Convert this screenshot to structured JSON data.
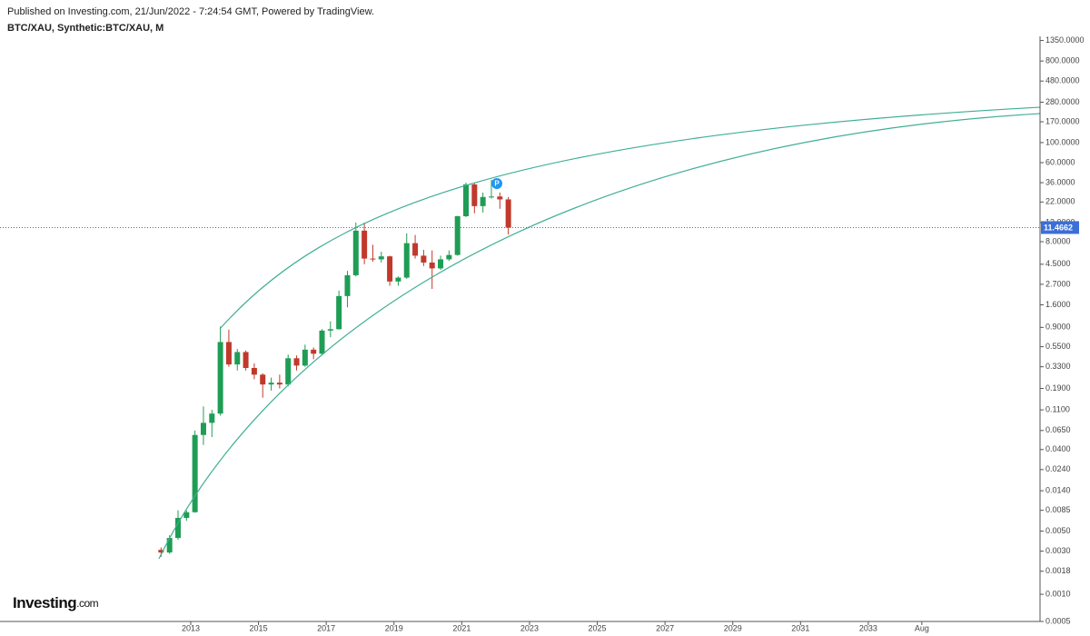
{
  "chart_data": {
    "type": "candlestick",
    "subtitle": "Published on Investing.com, 21/Jun/2022 - 7:24:54 GMT, Powered by TradingView.",
    "title": "BTC/XAU, Synthetic:BTC/XAU, M",
    "marker": "P",
    "log_scale": true,
    "up_color": "#1f9d55",
    "down_color": "#c0392b",
    "x": [
      2012.125,
      2012.375,
      2012.625,
      2012.875,
      2013.125,
      2013.375,
      2013.625,
      2013.875,
      2014.125,
      2014.375,
      2014.625,
      2014.875,
      2015.125,
      2015.375,
      2015.625,
      2015.875,
      2016.125,
      2016.375,
      2016.625,
      2016.875,
      2017.125,
      2017.375,
      2017.625,
      2017.875,
      2018.125,
      2018.375,
      2018.625,
      2018.875,
      2019.125,
      2019.375,
      2019.625,
      2019.875,
      2020.125,
      2020.375,
      2020.625,
      2020.875,
      2021.125,
      2021.375,
      2021.625,
      2021.875,
      2022.125,
      2022.375
    ],
    "series": [
      {
        "open": [
          0.0031,
          0.0029,
          0.0042,
          0.007,
          0.0081,
          0.058,
          0.079,
          0.1,
          0.62,
          0.35,
          0.48,
          0.32,
          0.27,
          0.21,
          0.22,
          0.21,
          0.41,
          0.34,
          0.51,
          0.46,
          0.83,
          0.86,
          2.0,
          3.4,
          10.6,
          5.2,
          5.1,
          5.5,
          2.9,
          3.2,
          7.7,
          5.6,
          4.7,
          4.05,
          5.1,
          5.7,
          15.3,
          34.4,
          19.8,
          25,
          25.3,
          23.5
        ],
        "high": [
          0.0033,
          0.0045,
          0.0085,
          0.0085,
          0.065,
          0.12,
          0.11,
          0.92,
          0.85,
          0.52,
          0.5,
          0.36,
          0.28,
          0.25,
          0.27,
          0.45,
          0.44,
          0.58,
          0.54,
          0.86,
          1.05,
          2.3,
          3.8,
          13,
          13,
          7.4,
          6.2,
          5.6,
          3.3,
          9.9,
          9.5,
          6.5,
          6.4,
          5.6,
          6.4,
          15.5,
          36,
          36,
          28,
          38.7,
          28,
          25
        ],
        "low": [
          0.0026,
          0.0028,
          0.004,
          0.0065,
          0.008,
          0.045,
          0.055,
          0.095,
          0.33,
          0.3,
          0.3,
          0.24,
          0.15,
          0.18,
          0.19,
          0.2,
          0.3,
          0.33,
          0.4,
          0.45,
          0.7,
          0.85,
          1.5,
          3.3,
          4.5,
          4.8,
          4.7,
          2.6,
          2.6,
          3.1,
          5.2,
          4.3,
          2.4,
          3.9,
          4.9,
          5.6,
          15,
          16.5,
          16.8,
          24,
          18.5,
          9.6
        ],
        "close": [
          0.0029,
          0.0042,
          0.007,
          0.0081,
          0.058,
          0.079,
          0.1,
          0.62,
          0.35,
          0.48,
          0.32,
          0.27,
          0.21,
          0.22,
          0.21,
          0.41,
          0.34,
          0.51,
          0.46,
          0.83,
          0.86,
          2.0,
          3.4,
          10.6,
          5.2,
          5.1,
          5.5,
          2.9,
          3.2,
          7.7,
          5.6,
          4.7,
          4.05,
          5.1,
          5.7,
          15.3,
          34.4,
          19.8,
          25,
          25.3,
          23.5,
          11.4662
        ]
      }
    ],
    "last_price": {
      "value": 11.4662,
      "label": "11.4662"
    },
    "price_line_color": "#3b6fd6",
    "xlim": [
      2007.37,
      2038.07
    ],
    "xticks": [
      2013,
      2015,
      2017,
      2019,
      2021,
      2023,
      2025,
      2027,
      2029,
      2031,
      2033,
      {
        "value": 2034.58,
        "label": "Aug"
      }
    ],
    "ylim": [
      0.0005,
      1500
    ],
    "yticks": [
      {
        "value": 1350,
        "label": "1350.0000"
      },
      {
        "value": 800,
        "label": "800.0000"
      },
      {
        "value": 480,
        "label": "480.0000"
      },
      {
        "value": 280,
        "label": "280.0000"
      },
      {
        "value": 170,
        "label": "170.0000"
      },
      {
        "value": 100,
        "label": "100.0000"
      },
      {
        "value": 60,
        "label": "60.0000"
      },
      {
        "value": 36,
        "label": "36.0000"
      },
      {
        "value": 22,
        "label": "22.0000"
      },
      {
        "value": 13,
        "label": "13.0000"
      },
      {
        "value": 8,
        "label": "8.0000"
      },
      {
        "value": 4.5,
        "label": "4.5000"
      },
      {
        "value": 2.7,
        "label": "2.7000"
      },
      {
        "value": 1.6,
        "label": "1.6000"
      },
      {
        "value": 0.9,
        "label": "0.9000"
      },
      {
        "value": 0.55,
        "label": "0.5500"
      },
      {
        "value": 0.33,
        "label": "0.3300"
      },
      {
        "value": 0.19,
        "label": "0.1900"
      },
      {
        "value": 0.11,
        "label": "0.1100"
      },
      {
        "value": 0.065,
        "label": "0.0650"
      },
      {
        "value": 0.04,
        "label": "0.0400"
      },
      {
        "value": 0.024,
        "label": "0.0240"
      },
      {
        "value": 0.014,
        "label": "0.0140"
      },
      {
        "value": 0.0085,
        "label": "0.0085"
      },
      {
        "value": 0.005,
        "label": "0.0050"
      },
      {
        "value": 0.003,
        "label": "0.0030"
      },
      {
        "value": 0.0018,
        "label": "0.0018"
      },
      {
        "value": 0.001,
        "label": "0.0010"
      },
      {
        "value": 0.0005,
        "label": "0.0005"
      }
    ]
  },
  "branding": {
    "name": "Investing",
    "suffix": ".com"
  }
}
